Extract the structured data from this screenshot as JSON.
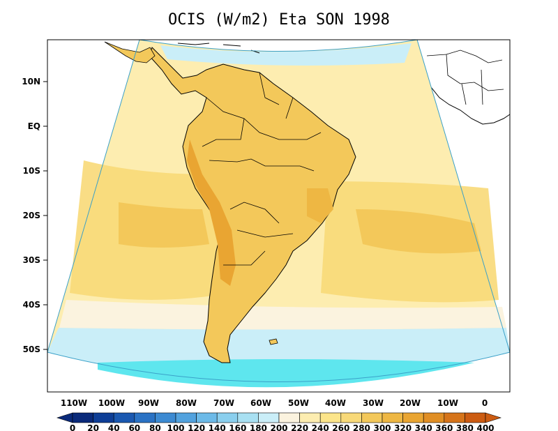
{
  "title": "OCIS (W/m2) Eta SON 1998",
  "map": {
    "lat_labels": [
      "10N",
      "EQ",
      "10S",
      "20S",
      "30S",
      "40S",
      "50S"
    ],
    "lon_labels": [
      "110W",
      "100W",
      "90W",
      "80W",
      "70W",
      "60W",
      "50W",
      "40W",
      "30W",
      "20W",
      "10W",
      "0"
    ]
  },
  "colorbar": {
    "labels": [
      "0",
      "20",
      "40",
      "60",
      "80",
      "100",
      "120",
      "140",
      "160",
      "180",
      "200",
      "220",
      "240",
      "260",
      "280",
      "300",
      "320",
      "340",
      "360",
      "380",
      "400"
    ],
    "colors": [
      "#0a2a7a",
      "#0e3e96",
      "#1a58b0",
      "#2a72c4",
      "#3c8ad2",
      "#52a2de",
      "#6cbae8",
      "#8acfee",
      "#a8e0f2",
      "#caeef8",
      "#fbf3df",
      "#fdedb0",
      "#fce58a",
      "#f8d978",
      "#f3c85a",
      "#eeb743",
      "#e9a532",
      "#e08e24",
      "#d6741a",
      "#cc5c12"
    ]
  }
}
